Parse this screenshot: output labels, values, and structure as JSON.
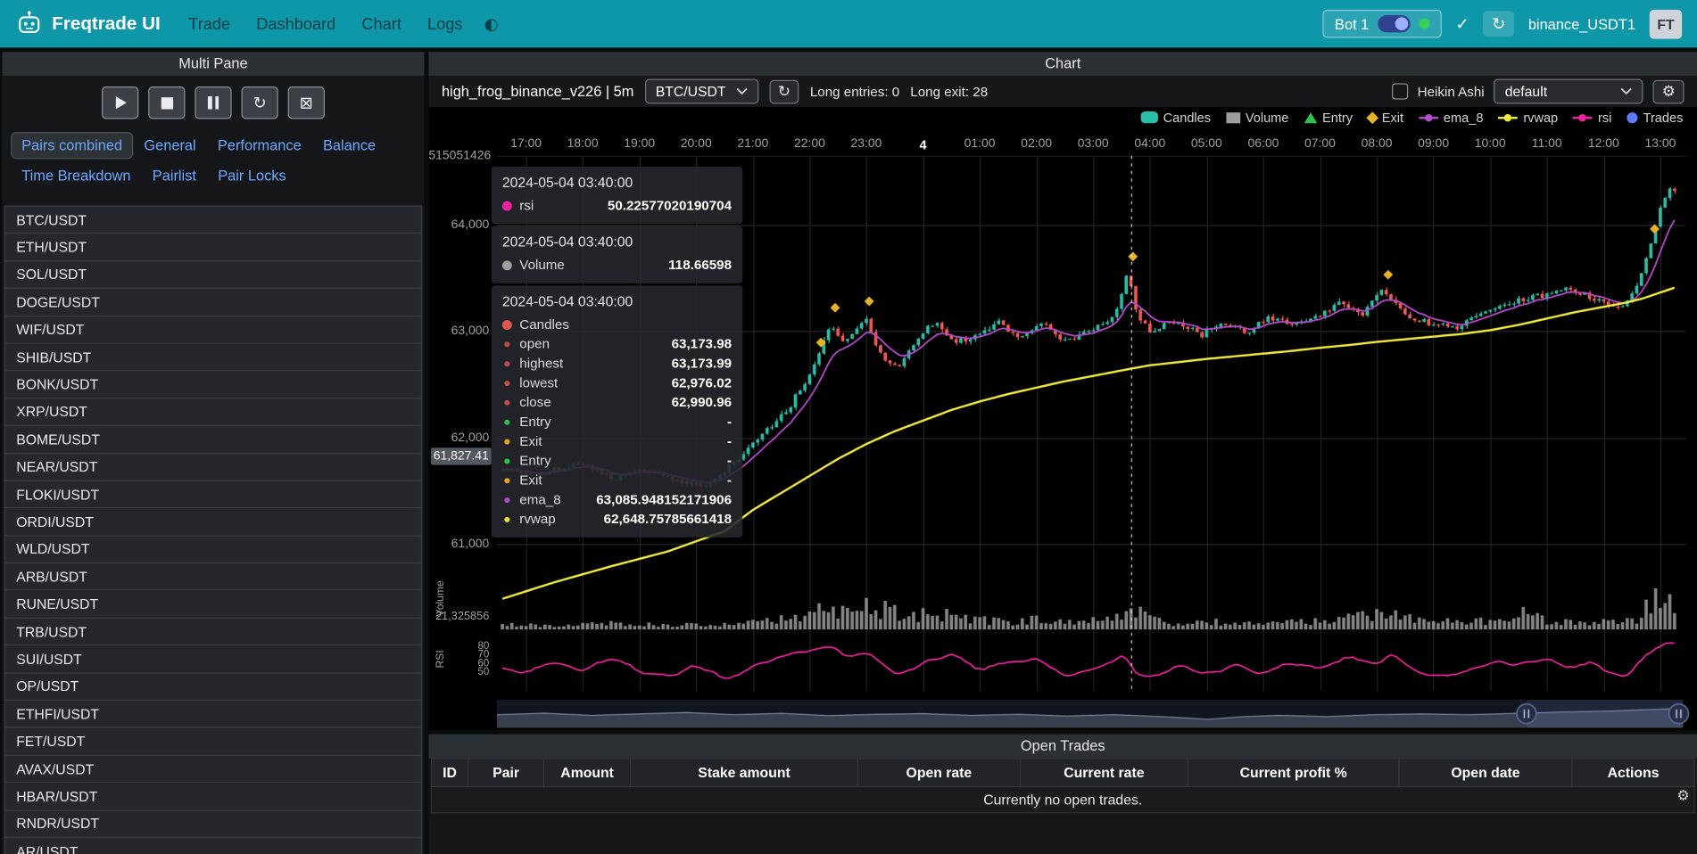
{
  "navbar": {
    "brand": "Freqtrade UI",
    "links": [
      "Trade",
      "Dashboard",
      "Chart",
      "Logs"
    ],
    "bot": {
      "label": "Bot 1",
      "online": true
    },
    "exchange": "binance_USDT1",
    "avatar": "FT"
  },
  "sidebar": {
    "title": "Multi Pane",
    "tabs": [
      "Pairs combined",
      "General",
      "Performance",
      "Balance",
      "Time Breakdown",
      "Pairlist",
      "Pair Locks"
    ],
    "active_tab": "Pairs combined",
    "pairs": [
      "BTC/USDT",
      "ETH/USDT",
      "SOL/USDT",
      "DOGE/USDT",
      "WIF/USDT",
      "SHIB/USDT",
      "BONK/USDT",
      "XRP/USDT",
      "BOME/USDT",
      "NEAR/USDT",
      "FLOKI/USDT",
      "ORDI/USDT",
      "WLD/USDT",
      "ARB/USDT",
      "RUNE/USDT",
      "TRB/USDT",
      "SUI/USDT",
      "OP/USDT",
      "ETHFI/USDT",
      "FET/USDT",
      "AVAX/USDT",
      "HBAR/USDT",
      "RNDR/USDT",
      "AR/USDT"
    ]
  },
  "chart_panel": {
    "title": "Chart",
    "strategy": "high_frog_binance_v226 | 5m",
    "pair": "BTC/USDT",
    "long_entries": "Long entries: 0",
    "long_exits": "Long exit: 28",
    "heikin_ashi": "Heikin Ashi",
    "plot_config": "default",
    "legend": [
      {
        "label": "Candles",
        "marker": "candle",
        "color": "#2abda8"
      },
      {
        "label": "Volume",
        "marker": "rect",
        "color": "#9e9e9e"
      },
      {
        "label": "Entry",
        "marker": "triangle",
        "color": "#2fc24c"
      },
      {
        "label": "Exit",
        "marker": "diamond",
        "color": "#e8b425"
      },
      {
        "label": "ema_8",
        "marker": "line-dot",
        "color": "#b44bc9"
      },
      {
        "label": "rvwap",
        "marker": "line-dot",
        "color": "#f3ec3d"
      },
      {
        "label": "rsi",
        "marker": "line-dot",
        "color": "#f0219e"
      },
      {
        "label": "Trades",
        "marker": "circle",
        "color": "#5c7cfa"
      }
    ],
    "axis": {
      "x_ticks": [
        "17:00",
        "18:00",
        "19:00",
        "20:00",
        "21:00",
        "22:00",
        "23:00",
        "4",
        "01:00",
        "02:00",
        "03:00",
        "04:00",
        "05:00",
        "06:00",
        "07:00",
        "08:00",
        "09:00",
        "10:00",
        "11:00",
        "12:00",
        "13:00"
      ],
      "x_emphasis": "4",
      "y_price_ticks": [
        {
          "label": "64,000",
          "price": 64000
        },
        {
          "label": "63,000",
          "price": 63000
        },
        {
          "label": "62,000",
          "price": 62000
        },
        {
          "label": "61,000",
          "price": 61000
        }
      ],
      "y_top_label": "515051426",
      "volume_label": "21,325856",
      "volume_axis": "Volume",
      "rsi_axis": "RSI",
      "rsi_ticks": [
        {
          "label": "80",
          "value": 80
        },
        {
          "label": "70",
          "value": 70
        },
        {
          "label": "60",
          "value": 60
        },
        {
          "label": "50",
          "value": 50
        }
      ],
      "price_tag": "61,827.41"
    },
    "tooltips": {
      "rsi": {
        "time": "2024-05-04 03:40:00",
        "label": "rsi",
        "value": "50.22577020190704",
        "dot": "#f0219e"
      },
      "volume": {
        "time": "2024-05-04 03:40:00",
        "label": "Volume",
        "value": "118.66598",
        "dot": "#9e9e9e"
      },
      "candles": {
        "time": "2024-05-04 03:40:00",
        "label": "Candles",
        "dot": "#e0584e",
        "rows": [
          {
            "label": "open",
            "value": "63,173.98",
            "dot": "#c0504d"
          },
          {
            "label": "highest",
            "value": "63,173.99",
            "dot": "#c0504d"
          },
          {
            "label": "lowest",
            "value": "62,976.02",
            "dot": "#c0504d"
          },
          {
            "label": "close",
            "value": "62,990.96",
            "dot": "#c0504d"
          },
          {
            "label": "Entry",
            "value": "-",
            "dot": "#2fc24c"
          },
          {
            "label": "Exit",
            "value": "-",
            "dot": "#e6a817"
          },
          {
            "label": "Entry",
            "value": "-",
            "dot": "#2fc24c"
          },
          {
            "label": "Exit",
            "value": "-",
            "dot": "#e6a817"
          },
          {
            "label": "ema_8",
            "value": "63,085.948152171906",
            "dot": "#b44bc9"
          },
          {
            "label": "rvwap",
            "value": "62,648.75785661418",
            "dot": "#e8e337"
          }
        ]
      }
    }
  },
  "open_trades": {
    "title": "Open Trades",
    "columns": [
      "ID",
      "Pair",
      "Amount",
      "Stake amount",
      "Open rate",
      "Current rate",
      "Current profit %",
      "Open date",
      "Actions"
    ],
    "empty": "Currently no open trades."
  },
  "chart_data": {
    "type": "candlestick",
    "pair": "BTC/USDT",
    "timeframe": "5m",
    "x_range_hours": [
      -0.5,
      20.25
    ],
    "x_start_label": "17:00",
    "price_range": [
      60500,
      64650
    ],
    "crosshair_hour": 10.6667,
    "price_anchors": [
      [
        -0.5,
        61720
      ],
      [
        0.3,
        61660
      ],
      [
        1.0,
        61760
      ],
      [
        1.6,
        61620
      ],
      [
        2.2,
        61700
      ],
      [
        2.8,
        61580
      ],
      [
        3.3,
        61560
      ],
      [
        3.8,
        61780
      ],
      [
        4.2,
        62000
      ],
      [
        4.7,
        62260
      ],
      [
        5.1,
        62620
      ],
      [
        5.45,
        63080
      ],
      [
        5.7,
        62880
      ],
      [
        6.05,
        63140
      ],
      [
        6.35,
        62760
      ],
      [
        6.65,
        62650
      ],
      [
        7.0,
        62950
      ],
      [
        7.3,
        63090
      ],
      [
        7.6,
        62890
      ],
      [
        8.0,
        62960
      ],
      [
        8.4,
        63090
      ],
      [
        8.8,
        62940
      ],
      [
        9.2,
        63060
      ],
      [
        9.6,
        62890
      ],
      [
        10.0,
        63010
      ],
      [
        10.45,
        63120
      ],
      [
        10.7,
        63560
      ],
      [
        10.85,
        63140
      ],
      [
        11.1,
        62990
      ],
      [
        11.5,
        63100
      ],
      [
        12.0,
        62970
      ],
      [
        12.4,
        63080
      ],
      [
        12.8,
        63000
      ],
      [
        13.2,
        63130
      ],
      [
        13.6,
        63050
      ],
      [
        14.0,
        63130
      ],
      [
        14.45,
        63290
      ],
      [
        14.8,
        63140
      ],
      [
        15.2,
        63390
      ],
      [
        15.55,
        63170
      ],
      [
        16.0,
        63070
      ],
      [
        16.5,
        63030
      ],
      [
        17.0,
        63180
      ],
      [
        17.5,
        63280
      ],
      [
        18.0,
        63340
      ],
      [
        18.5,
        63400
      ],
      [
        19.0,
        63280
      ],
      [
        19.4,
        63230
      ],
      [
        19.7,
        63480
      ],
      [
        19.9,
        63820
      ],
      [
        20.1,
        64200
      ],
      [
        20.25,
        64340
      ]
    ],
    "rvwap_anchors": [
      [
        -0.5,
        60470
      ],
      [
        0.5,
        60640
      ],
      [
        1.5,
        60790
      ],
      [
        2.5,
        60930
      ],
      [
        3.5,
        61120
      ],
      [
        4.0,
        61320
      ],
      [
        4.5,
        61480
      ],
      [
        5.0,
        61640
      ],
      [
        5.5,
        61800
      ],
      [
        6.0,
        61940
      ],
      [
        6.5,
        62060
      ],
      [
        7.0,
        62160
      ],
      [
        7.5,
        62260
      ],
      [
        8.0,
        62340
      ],
      [
        8.5,
        62410
      ],
      [
        9.0,
        62470
      ],
      [
        9.5,
        62530
      ],
      [
        10.0,
        62580
      ],
      [
        10.67,
        62649
      ],
      [
        11.0,
        62680
      ],
      [
        11.5,
        62710
      ],
      [
        12.0,
        62740
      ],
      [
        12.5,
        62765
      ],
      [
        13.0,
        62790
      ],
      [
        13.5,
        62815
      ],
      [
        14.0,
        62845
      ],
      [
        14.5,
        62870
      ],
      [
        15.0,
        62900
      ],
      [
        15.5,
        62925
      ],
      [
        16.0,
        62950
      ],
      [
        16.5,
        62975
      ],
      [
        17.0,
        63010
      ],
      [
        17.5,
        63060
      ],
      [
        18.0,
        63120
      ],
      [
        18.5,
        63180
      ],
      [
        19.0,
        63230
      ],
      [
        19.4,
        63270
      ],
      [
        19.7,
        63310
      ],
      [
        20.25,
        63410
      ]
    ],
    "volume_anchors": [
      [
        -0.5,
        0.14
      ],
      [
        0.5,
        0.12
      ],
      [
        1.5,
        0.16
      ],
      [
        2.5,
        0.12
      ],
      [
        3.5,
        0.15
      ],
      [
        4.3,
        0.22
      ],
      [
        4.8,
        0.34
      ],
      [
        5.2,
        0.52
      ],
      [
        5.6,
        0.42
      ],
      [
        6.0,
        0.62
      ],
      [
        6.4,
        0.5
      ],
      [
        6.8,
        0.34
      ],
      [
        7.2,
        0.46
      ],
      [
        7.8,
        0.28
      ],
      [
        8.5,
        0.2
      ],
      [
        9.2,
        0.28
      ],
      [
        9.8,
        0.2
      ],
      [
        10.4,
        0.3
      ],
      [
        10.7,
        0.62
      ],
      [
        11.0,
        0.26
      ],
      [
        11.6,
        0.15
      ],
      [
        12.2,
        0.2
      ],
      [
        13.0,
        0.14
      ],
      [
        13.8,
        0.22
      ],
      [
        14.5,
        0.34
      ],
      [
        15.2,
        0.38
      ],
      [
        15.8,
        0.22
      ],
      [
        16.5,
        0.2
      ],
      [
        17.2,
        0.26
      ],
      [
        17.6,
        0.46
      ],
      [
        18.0,
        0.24
      ],
      [
        18.6,
        0.18
      ],
      [
        19.2,
        0.2
      ],
      [
        19.6,
        0.3
      ],
      [
        19.85,
        0.7
      ],
      [
        20.0,
        0.95
      ],
      [
        20.25,
        0.78
      ]
    ],
    "rsi_anchors": [
      [
        -0.5,
        55
      ],
      [
        0.0,
        48
      ],
      [
        0.5,
        62
      ],
      [
        1.0,
        52
      ],
      [
        1.5,
        66
      ],
      [
        2.0,
        50
      ],
      [
        2.5,
        44
      ],
      [
        3.0,
        58
      ],
      [
        3.5,
        42
      ],
      [
        4.0,
        56
      ],
      [
        4.5,
        66
      ],
      [
        5.0,
        74
      ],
      [
        5.4,
        82
      ],
      [
        5.7,
        64
      ],
      [
        6.05,
        74
      ],
      [
        6.5,
        46
      ],
      [
        7.0,
        60
      ],
      [
        7.5,
        70
      ],
      [
        8.0,
        52
      ],
      [
        8.5,
        62
      ],
      [
        9.0,
        66
      ],
      [
        9.5,
        44
      ],
      [
        10.0,
        54
      ],
      [
        10.45,
        64
      ],
      [
        10.6,
        74
      ],
      [
        10.67,
        50
      ],
      [
        10.9,
        42
      ],
      [
        11.2,
        44
      ],
      [
        11.5,
        56
      ],
      [
        12.0,
        47
      ],
      [
        12.5,
        58
      ],
      [
        13.0,
        49
      ],
      [
        13.5,
        60
      ],
      [
        14.0,
        54
      ],
      [
        14.5,
        68
      ],
      [
        15.0,
        57
      ],
      [
        15.3,
        71
      ],
      [
        15.7,
        47
      ],
      [
        16.1,
        43
      ],
      [
        16.6,
        50
      ],
      [
        17.0,
        62
      ],
      [
        17.5,
        56
      ],
      [
        18.0,
        66
      ],
      [
        18.4,
        54
      ],
      [
        18.8,
        62
      ],
      [
        19.1,
        47
      ],
      [
        19.4,
        43
      ],
      [
        19.7,
        66
      ],
      [
        19.95,
        80
      ],
      [
        20.25,
        84
      ]
    ],
    "exit_marker_hours": [
      5.2,
      5.45,
      6.05,
      10.7,
      15.2,
      19.9
    ],
    "navigator": [
      [
        0,
        0.52
      ],
      [
        0.04,
        0.45
      ],
      [
        0.08,
        0.55
      ],
      [
        0.12,
        0.48
      ],
      [
        0.16,
        0.42
      ],
      [
        0.2,
        0.52
      ],
      [
        0.24,
        0.46
      ],
      [
        0.28,
        0.56
      ],
      [
        0.32,
        0.5
      ],
      [
        0.36,
        0.47
      ],
      [
        0.4,
        0.55
      ],
      [
        0.44,
        0.5
      ],
      [
        0.48,
        0.58
      ],
      [
        0.52,
        0.52
      ],
      [
        0.56,
        0.6
      ],
      [
        0.6,
        0.72
      ],
      [
        0.63,
        0.6
      ],
      [
        0.66,
        0.55
      ],
      [
        0.7,
        0.6
      ],
      [
        0.74,
        0.52
      ],
      [
        0.78,
        0.48
      ],
      [
        0.82,
        0.52
      ],
      [
        0.86,
        0.46
      ],
      [
        0.9,
        0.4
      ],
      [
        0.94,
        0.36
      ],
      [
        0.97,
        0.3
      ],
      [
        1,
        0.24
      ]
    ],
    "navigator_window": [
      0.868,
      1.0
    ],
    "colors": {
      "up": "#2abda8",
      "down": "#ef5a52",
      "ema_8": "#b44bc9",
      "rvwap": "#f3ec3d",
      "rsi": "#f0219e",
      "volume": "#a8a8a8",
      "exit": "#e8b425",
      "entry": "#2fc24c",
      "trades": "#5c7cfa",
      "grid": "#242424",
      "grid_v": "#202020",
      "crosshair": "#e8e8e8"
    }
  }
}
